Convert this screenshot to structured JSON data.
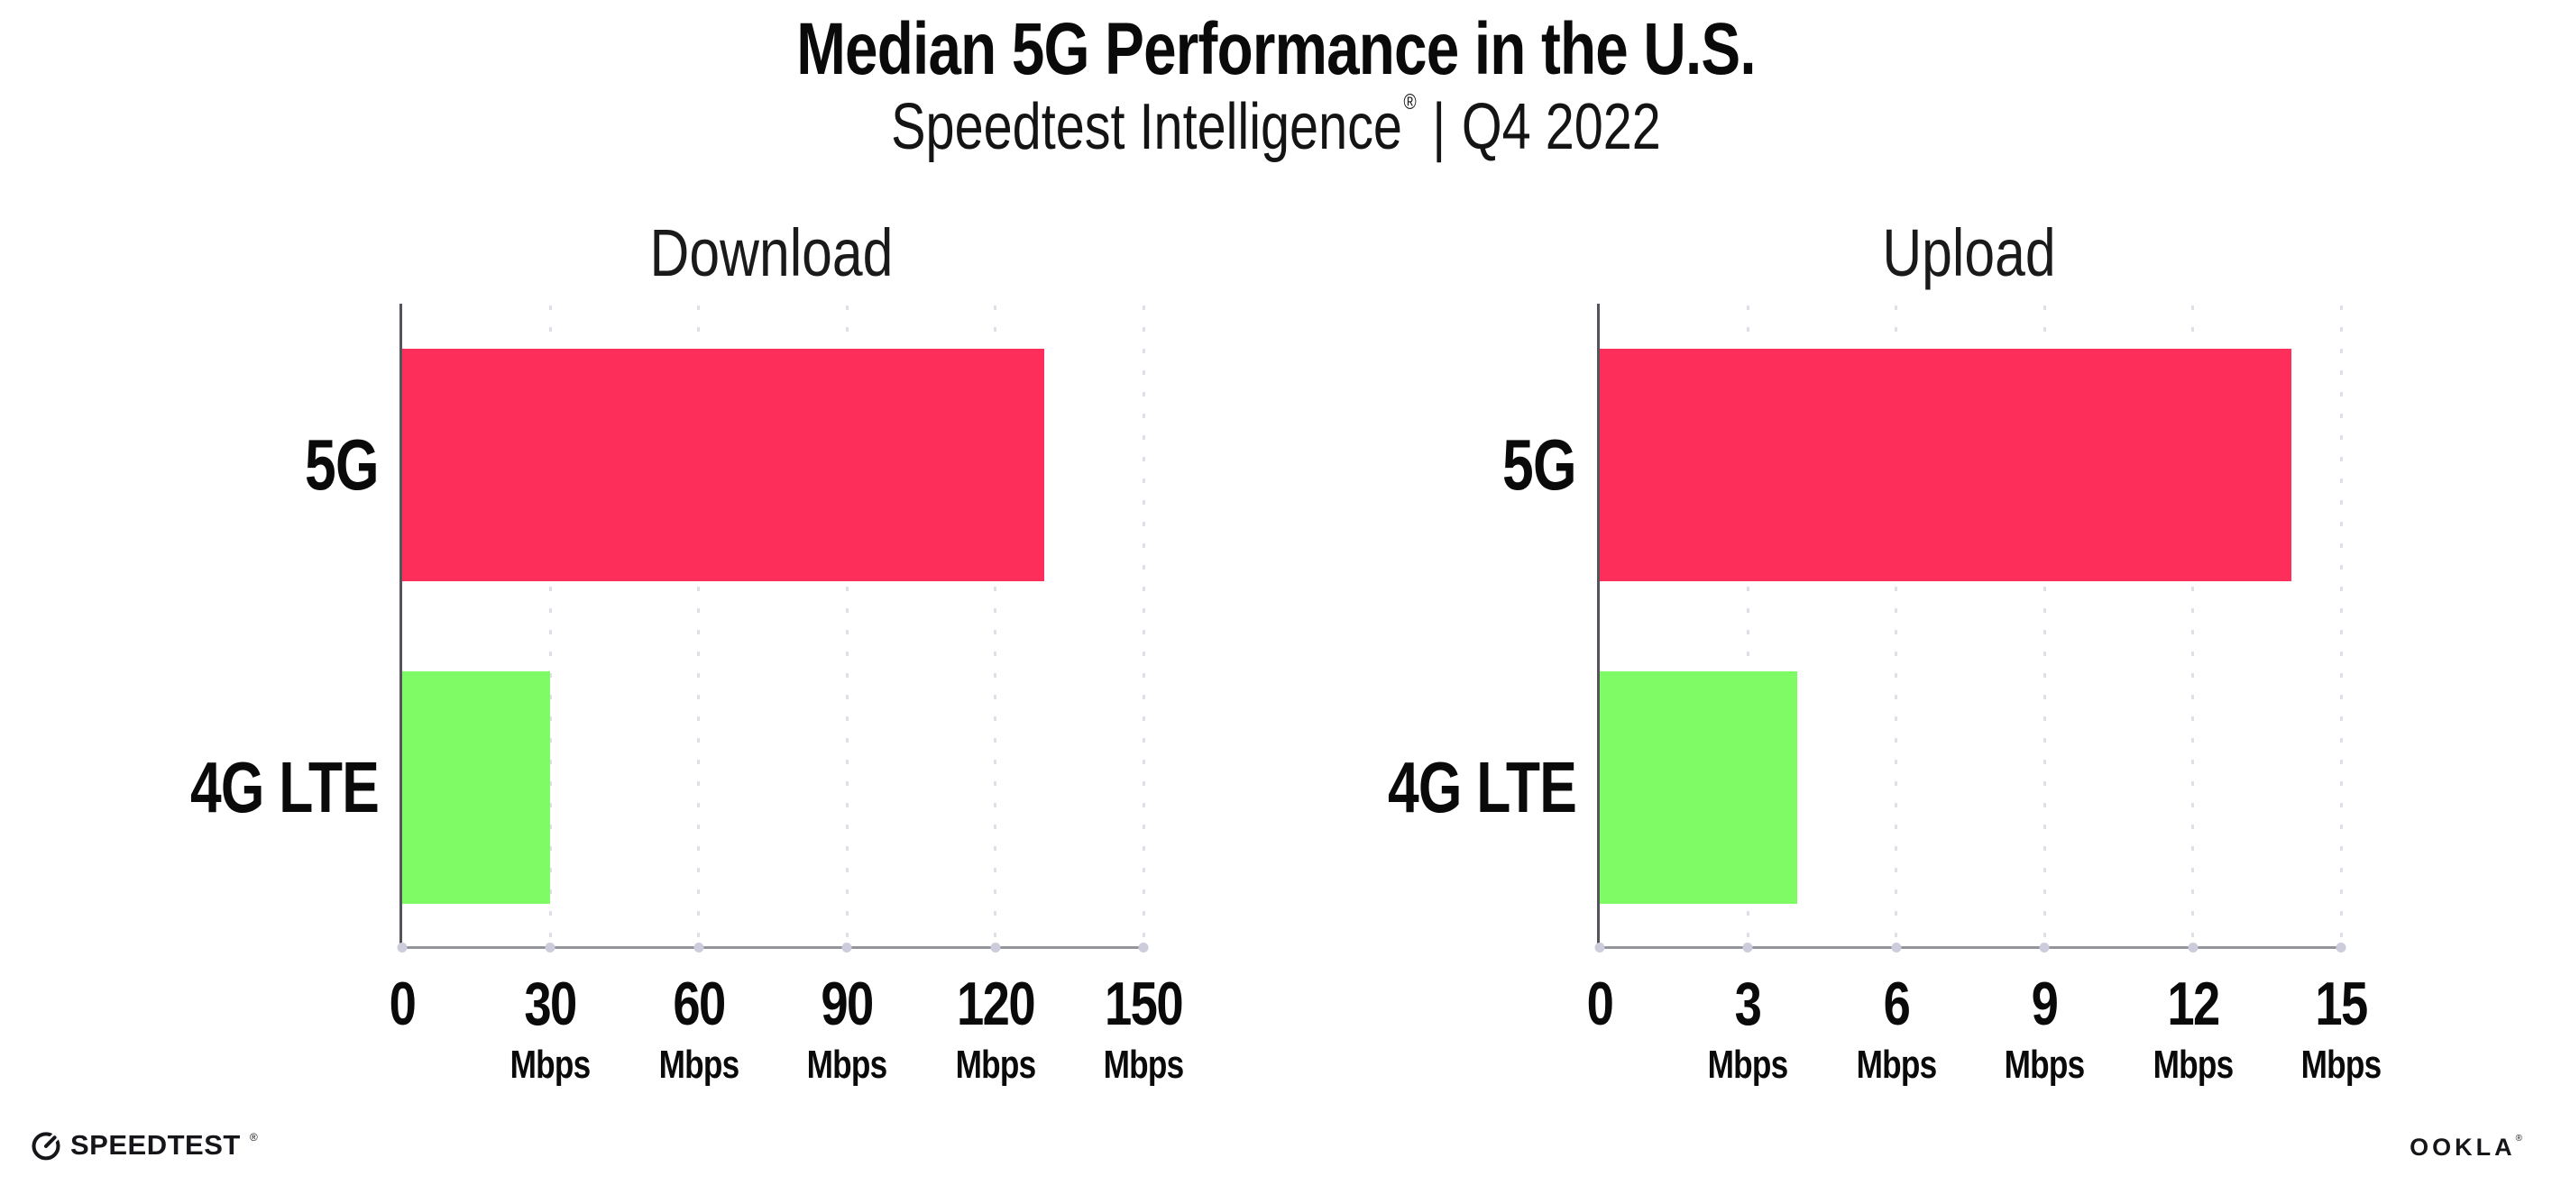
{
  "header": {
    "title": "Median 5G Performance in the U.S.",
    "subtitle_brand": "Speedtest Intelligence",
    "subtitle_registered": "®",
    "subtitle_separator": "|",
    "subtitle_period": "Q4 2022"
  },
  "chart_data": [
    {
      "type": "bar",
      "orientation": "horizontal",
      "title": "Download",
      "categories": [
        "5G",
        "4G LTE"
      ],
      "values": [
        130,
        30
      ],
      "unit": "Mbps",
      "xlabel": "",
      "ylabel": "",
      "xlim": [
        0,
        150
      ],
      "xticks": [
        0,
        30,
        60,
        90,
        120,
        150
      ],
      "bar_colors": [
        "#FD2E5A",
        "#7EFB65"
      ],
      "grid": "dotted-vertical-gridlines",
      "legend": "none"
    },
    {
      "type": "bar",
      "orientation": "horizontal",
      "title": "Upload",
      "categories": [
        "5G",
        "4G LTE"
      ],
      "values": [
        14,
        4
      ],
      "unit": "Mbps",
      "xlabel": "",
      "ylabel": "",
      "xlim": [
        0,
        15
      ],
      "xticks": [
        0,
        3,
        6,
        9,
        12,
        15
      ],
      "bar_colors": [
        "#FD2E5A",
        "#7EFB65"
      ],
      "grid": "dotted-vertical-gridlines",
      "legend": "none"
    }
  ],
  "footer": {
    "speedtest_logo_text": "SPEEDTEST",
    "speedtest_trademark": "®",
    "ookla_logo_text": "OOKLA",
    "ookla_trademark": "®"
  }
}
